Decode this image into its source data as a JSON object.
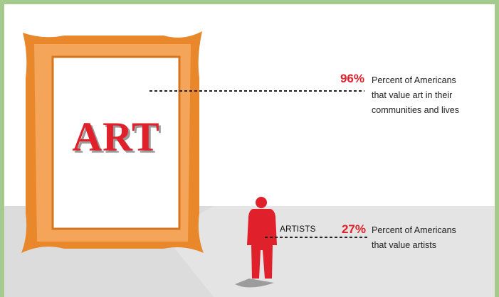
{
  "infographic": {
    "art_label": "ART",
    "stats": [
      {
        "value": "96%",
        "lines": [
          "Percent of Americans",
          "that value art in their",
          "communities and lives"
        ]
      },
      {
        "label": "ARTISTS",
        "value": "27%",
        "lines": [
          "Percent of Americans",
          "that value artists"
        ]
      }
    ]
  }
}
